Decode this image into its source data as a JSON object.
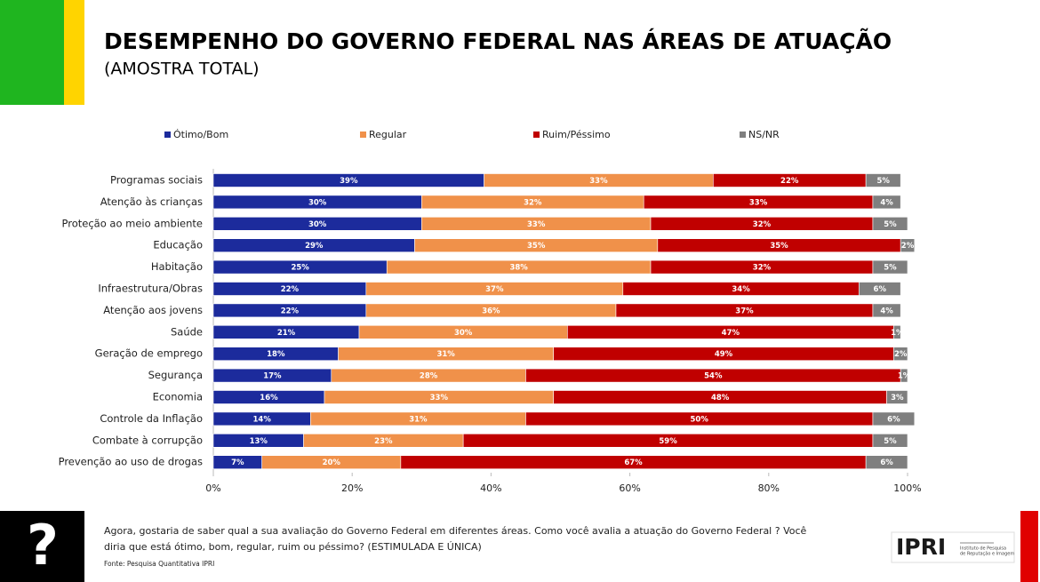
{
  "header": {
    "title": "DESEMPENHO DO GOVERNO FEDERAL NAS ÁREAS DE ATUAÇÃO",
    "subtitle": "(AMOSTRA TOTAL)"
  },
  "chart_data": {
    "type": "bar",
    "orientation": "horizontal",
    "stacked": true,
    "categories": [
      "Programas sociais",
      "Atenção às crianças",
      "Proteção ao meio ambiente",
      "Educação",
      "Habitação",
      "Infraestrutura/Obras",
      "Atenção aos jovens",
      "Saúde",
      "Geração de emprego",
      "Segurança",
      "Economia",
      "Controle da Inflação",
      "Combate à corrupção",
      "Prevenção ao uso de drogas"
    ],
    "series": [
      {
        "name": "Ótimo/Bom",
        "color": "#1c2b9c",
        "values": [
          39,
          30,
          30,
          29,
          25,
          22,
          22,
          21,
          18,
          17,
          16,
          14,
          13,
          7
        ],
        "value_labels": [
          "39%",
          "30%",
          "30%",
          "29%",
          "25%",
          "22%",
          "22%",
          "21%",
          "18%",
          "17%",
          "16%",
          "14%",
          "13%",
          "7%"
        ]
      },
      {
        "name": "Regular",
        "color": "#f0914a",
        "values": [
          33,
          32,
          33,
          35,
          38,
          37,
          36,
          30,
          31,
          28,
          33,
          31,
          23,
          20
        ],
        "value_labels": [
          "33%",
          "32%",
          "33%",
          "35%",
          "38%",
          "37%",
          "36%",
          "30%",
          "31%",
          "28%",
          "33%",
          "31%",
          "23%",
          "20%"
        ]
      },
      {
        "name": "Ruim/Péssimo",
        "color": "#c00000",
        "values": [
          22,
          33,
          32,
          35,
          32,
          34,
          37,
          47,
          49,
          54,
          48,
          50,
          59,
          67
        ],
        "value_labels": [
          "22%",
          "33%",
          "32%",
          "35%",
          "32%",
          "34%",
          "37%",
          "47%",
          "49%",
          "54%",
          "48%",
          "50%",
          "59%",
          "67%"
        ]
      },
      {
        "name": "NS/NR",
        "color": "#7f7f7f",
        "values": [
          5,
          4,
          5,
          2,
          5,
          6,
          4,
          1,
          2,
          1,
          3,
          6,
          5,
          6
        ],
        "value_labels": [
          "5%",
          "4%",
          "5%",
          "2%",
          "5%",
          "6%",
          "4%",
          "1%",
          "2%",
          "1%",
          "3%",
          "6%",
          "5%",
          "6%"
        ]
      }
    ],
    "xlim": [
      0,
      100
    ],
    "xticks": [
      {
        "value": 0,
        "label": "0%"
      },
      {
        "value": 20,
        "label": "20%"
      },
      {
        "value": 40,
        "label": "40%"
      },
      {
        "value": 60,
        "label": "60%"
      },
      {
        "value": 80,
        "label": "80%"
      },
      {
        "value": 100,
        "label": "100%"
      }
    ],
    "legend": "top"
  },
  "footer": {
    "question": [
      "Agora, gostaria de saber qual a sua avaliação do Governo Federal em diferentes áreas. Como você avalia a atuação do Governo Federal ? Você",
      "diria que está ótimo, bom, regular, ruim ou péssimo? (ESTIMULADA E ÚNICA)"
    ],
    "source": "Fonte: Pesquisa Quantitativa IPRI",
    "logo": "IPRI",
    "logo_caption": [
      "Instituto de Pesquisa",
      "de Reputação e Imagem"
    ]
  }
}
